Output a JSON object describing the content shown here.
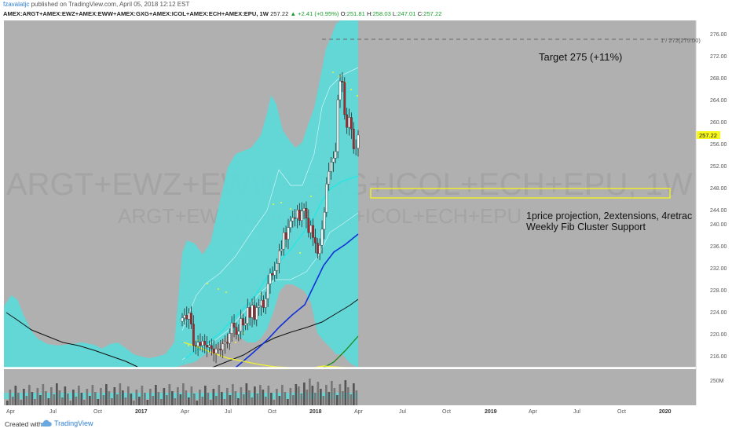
{
  "header": {
    "author": "fzavalatjc",
    "published": "published on TradingView.com, April 05, 2018 12:12 EST",
    "symbol": "AMEX:ARGT+AMEX:EWZ+AMEX:EWW+AMEX:GXG+AMEX:ICOL+AMEX:ECH+AMEX:EPU, 1W",
    "last": "257.22",
    "change": "+2.41 (+0.95%)",
    "ohlc": {
      "o_label": "O:",
      "o": "251.81",
      "h_label": "H:",
      "h": "258.03",
      "l_label": "L:",
      "l": "247.01",
      "c_label": "C:",
      "c": "257.22"
    }
  },
  "watermark": {
    "line1": "ARGT+EWZ+EWW+GXG+ICOL+ECH+EPU, 1W",
    "line2": "ARGT+EWZ+EWW+GXG+ICOL+ECH+EPU"
  },
  "annotations": {
    "target_text": "Target 275 (+11%)",
    "target_price": 275,
    "target_label": "1 / 272(275.00)",
    "support_line1": "1price projection, 2extensions, 4retrac",
    "support_line2": "Weekly Fib Cluster Support",
    "support_zone": [
      245.6,
      247.6
    ]
  },
  "price_axis": {
    "ticks": [
      "276.00",
      "272.00",
      "268.00",
      "264.00",
      "260.00",
      "256.00",
      "252.00",
      "248.00",
      "244.00",
      "240.00",
      "236.00",
      "232.00",
      "228.00",
      "224.00",
      "220.00",
      "216.00"
    ],
    "current_price": "257.22",
    "volume_tick": "250M"
  },
  "time_axis": {
    "labels": [
      "Apr",
      "Jul",
      "Oct",
      "2017",
      "Apr",
      "Jul",
      "Oct",
      "2018",
      "Apr",
      "Jul",
      "Oct",
      "2019",
      "Apr",
      "Jul",
      "Oct",
      "2020"
    ]
  },
  "colors": {
    "background": "#b0b0b0",
    "bollinger": "#5fd8d8",
    "bull_candle": "#ffffff",
    "bear_candle": "#a8272c",
    "ma_blue": "#1032d8",
    "ma_cyan": "#26e6e6",
    "ma_black": "#000000",
    "ma_green": "#198a1a",
    "ma_yellow": "#f2f230",
    "highlight": "#f7f71a"
  },
  "chart_data": {
    "type": "candlestick",
    "y_range": [
      215,
      278
    ],
    "closes": [
      224,
      224.5,
      223.8,
      224.9,
      222.9,
      219,
      218.9,
      219.6,
      219,
      219.8,
      219.1,
      218.7,
      219,
      218.4,
      217.6,
      218.4,
      218.4,
      218.2,
      219.3,
      219.6,
      219.4,
      221.2,
      223.1,
      222.3,
      221,
      221.6,
      223.9,
      222.7,
      223,
      225.9,
      224.1,
      226.3,
      223.7,
      225.9,
      226.2,
      227.2,
      225.9,
      227.5,
      230.2,
      232.1,
      231.8,
      232.6,
      233.9,
      236.2,
      236.5,
      239.5,
      238.3,
      240.4,
      241.6,
      242.2,
      242.1,
      243.6,
      241.7,
      243.4,
      243.9,
      242.1,
      239.5,
      240.8,
      238.6,
      237.6,
      235.7,
      237.2,
      240.1,
      243.2,
      248.3,
      250.6,
      252.3,
      253,
      254.2,
      263.6,
      267,
      266.8,
      260.9,
      258.6,
      260.4,
      258.3,
      254.7,
      254.8,
      257.2
    ]
  },
  "footer": {
    "created_with": "Created with",
    "brand": "TradingView"
  }
}
